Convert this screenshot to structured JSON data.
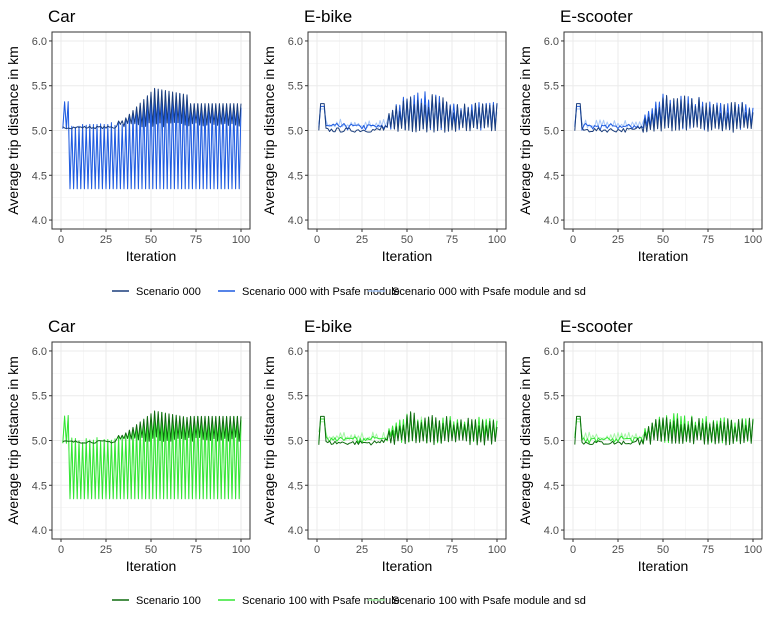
{
  "figure": {
    "x_label": "Iteration",
    "y_label": "Average trip distance in km",
    "x_ticks": [
      "0",
      "25",
      "50",
      "75",
      "100"
    ],
    "y_ticks": [
      "4.0",
      "4.5",
      "5.0",
      "5.5",
      "6.0"
    ]
  },
  "chart_data": [
    {
      "type": "line",
      "group": "scenario-000",
      "legend": [
        "Scenario 000",
        "Scenario 000 with Psafe module",
        "Scenario 000 with Psafe module and sd"
      ],
      "colors": [
        "#1a3d7c",
        "#1f5be0",
        "#a8c8f8"
      ],
      "xlim": [
        0,
        100
      ],
      "ylim": [
        4.0,
        6.0
      ],
      "panels": [
        {
          "title": "Car",
          "mode": "car",
          "peak": 5.47,
          "late": 5.3,
          "base": 5.02,
          "low": 4.35
        },
        {
          "title": "E-bike",
          "mode": "ebike",
          "peak": 5.47,
          "late": 5.32,
          "base": 5.0,
          "low": 5.0
        },
        {
          "title": "E-scooter",
          "mode": "escooter",
          "peak": 5.45,
          "late": 5.32,
          "base": 5.0,
          "low": 5.0
        }
      ]
    },
    {
      "type": "line",
      "group": "scenario-100",
      "legend": [
        "Scenario 100",
        "Scenario 100 with Psafe module",
        "Scenario 100 with Psafe module and sd"
      ],
      "colors": [
        "#0e6b0e",
        "#33e633",
        "#a8f5a8"
      ],
      "xlim": [
        0,
        100
      ],
      "ylim": [
        4.0,
        6.0
      ],
      "panels": [
        {
          "title": "Car",
          "mode": "car",
          "peak": 5.33,
          "late": 5.27,
          "base": 4.97,
          "low": 4.35
        },
        {
          "title": "E-bike",
          "mode": "ebike",
          "peak": 5.33,
          "late": 5.27,
          "base": 4.97,
          "low": 4.97
        },
        {
          "title": "E-scooter",
          "mode": "escooter",
          "peak": 5.33,
          "late": 5.27,
          "base": 4.97,
          "low": 4.97
        }
      ]
    }
  ]
}
